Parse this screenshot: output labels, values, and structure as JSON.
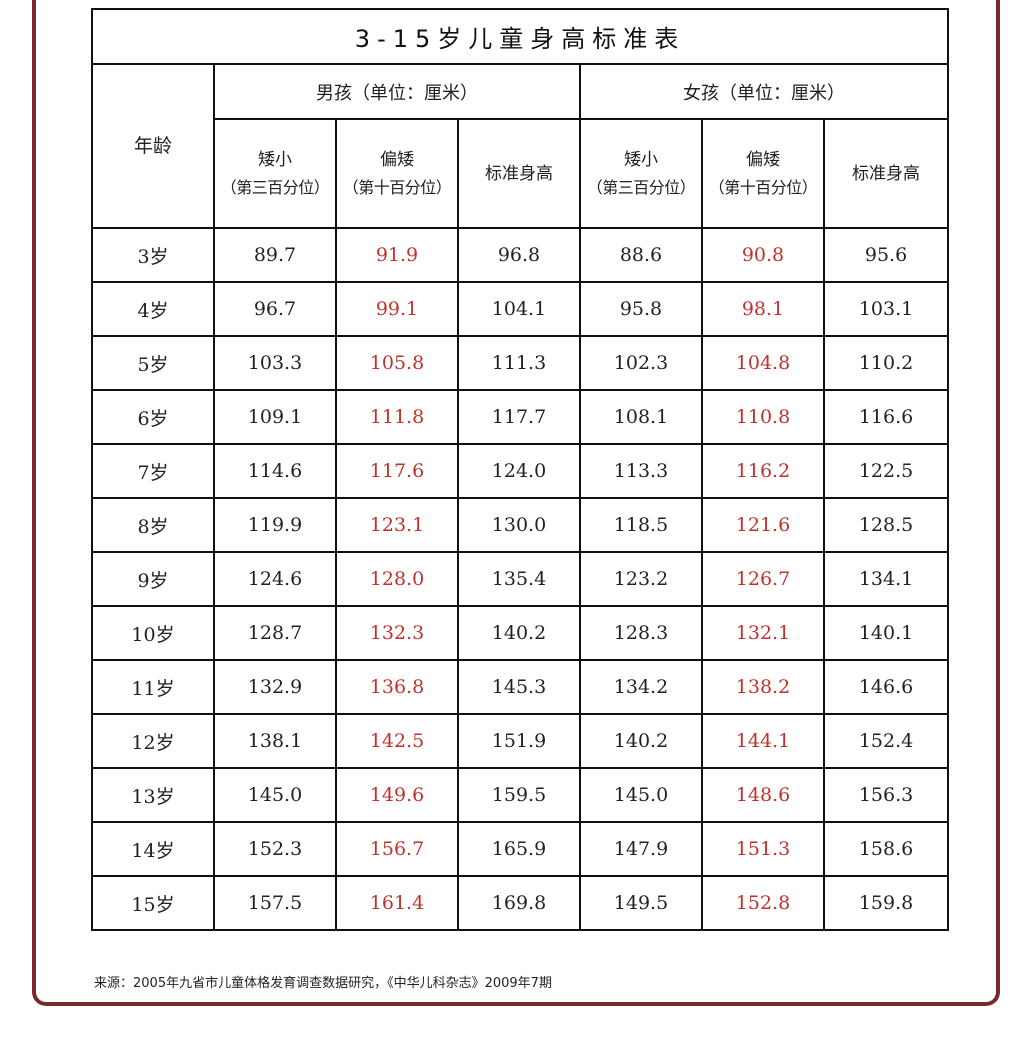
{
  "title": "3-15岁儿童身高标准表",
  "age_header": "年龄",
  "groups": {
    "boys": "男孩（单位：厘米）",
    "girls": "女孩（单位：厘米）"
  },
  "subheaders": {
    "short_top": "矮小",
    "short_paren": "（第三百分位）",
    "low_top": "偏矮",
    "low_paren": "（第十百分位）",
    "standard": "标准身高"
  },
  "colors": {
    "highlight": "#c0322b",
    "frame": "#7a2a2a"
  },
  "rows": [
    {
      "age": "3岁",
      "b_short": "89.7",
      "b_low": "91.9",
      "b_std": "96.8",
      "g_short": "88.6",
      "g_low": "90.8",
      "g_std": "95.6"
    },
    {
      "age": "4岁",
      "b_short": "96.7",
      "b_low": "99.1",
      "b_std": "104.1",
      "g_short": "95.8",
      "g_low": "98.1",
      "g_std": "103.1"
    },
    {
      "age": "5岁",
      "b_short": "103.3",
      "b_low": "105.8",
      "b_std": "111.3",
      "g_short": "102.3",
      "g_low": "104.8",
      "g_std": "110.2"
    },
    {
      "age": "6岁",
      "b_short": "109.1",
      "b_low": "111.8",
      "b_std": "117.7",
      "g_short": "108.1",
      "g_low": "110.8",
      "g_std": "116.6"
    },
    {
      "age": "7岁",
      "b_short": "114.6",
      "b_low": "117.6",
      "b_std": "124.0",
      "g_short": "113.3",
      "g_low": "116.2",
      "g_std": "122.5"
    },
    {
      "age": "8岁",
      "b_short": "119.9",
      "b_low": "123.1",
      "b_std": "130.0",
      "g_short": "118.5",
      "g_low": "121.6",
      "g_std": "128.5"
    },
    {
      "age": "9岁",
      "b_short": "124.6",
      "b_low": "128.0",
      "b_std": "135.4",
      "g_short": "123.2",
      "g_low": "126.7",
      "g_std": "134.1"
    },
    {
      "age": "10岁",
      "b_short": "128.7",
      "b_low": "132.3",
      "b_std": "140.2",
      "g_short": "128.3",
      "g_low": "132.1",
      "g_std": "140.1"
    },
    {
      "age": "11岁",
      "b_short": "132.9",
      "b_low": "136.8",
      "b_std": "145.3",
      "g_short": "134.2",
      "g_low": "138.2",
      "g_std": "146.6"
    },
    {
      "age": "12岁",
      "b_short": "138.1",
      "b_low": "142.5",
      "b_std": "151.9",
      "g_short": "140.2",
      "g_low": "144.1",
      "g_std": "152.4"
    },
    {
      "age": "13岁",
      "b_short": "145.0",
      "b_low": "149.6",
      "b_std": "159.5",
      "g_short": "145.0",
      "g_low": "148.6",
      "g_std": "156.3"
    },
    {
      "age": "14岁",
      "b_short": "152.3",
      "b_low": "156.7",
      "b_std": "165.9",
      "g_short": "147.9",
      "g_low": "151.3",
      "g_std": "158.6"
    },
    {
      "age": "15岁",
      "b_short": "157.5",
      "b_low": "161.4",
      "b_std": "169.8",
      "g_short": "149.5",
      "g_low": "152.8",
      "g_std": "159.8"
    }
  ],
  "source": "来源：2005年九省市儿童体格发育调查数据研究，《中华儿科杂志》2009年7期"
}
